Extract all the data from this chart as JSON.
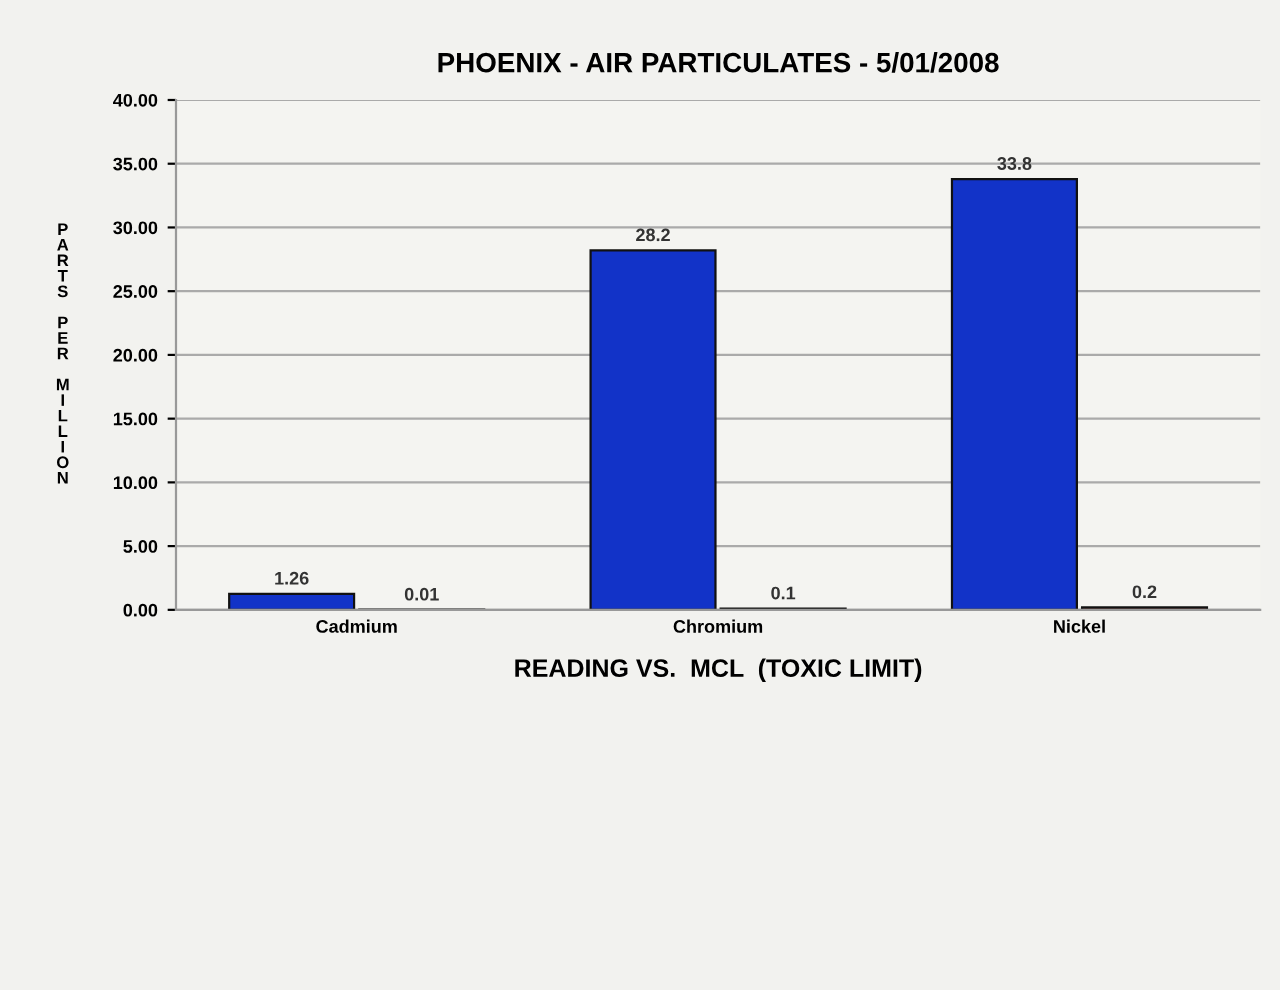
{
  "chart_data": {
    "type": "bar",
    "title": "PHOENIX - AIR PARTICULATES - 5/01/2008",
    "xlabel": "READING VS.  MCL  (TOXIC LIMIT)",
    "ylabel": "PARTS PER MILLION",
    "categories": [
      "Cadmium",
      "Chromium",
      "Nickel"
    ],
    "series": [
      {
        "color": "#1233c8",
        "values": [
          1.26,
          28.2,
          33.8
        ]
      },
      {
        "color": "#7a2a22",
        "values": [
          0.01,
          0.1,
          0.2
        ]
      }
    ],
    "ylim": [
      0,
      40
    ],
    "yticks": [
      {
        "value": 0,
        "label": "0.00"
      },
      {
        "value": 5,
        "label": "5.00"
      },
      {
        "value": 10,
        "label": "10.00"
      },
      {
        "value": 15,
        "label": "15.00"
      },
      {
        "value": 20,
        "label": "20.00"
      },
      {
        "value": 25,
        "label": "25.00"
      },
      {
        "value": 30,
        "label": "30.00"
      },
      {
        "value": 35,
        "label": "35.00"
      },
      {
        "value": 40,
        "label": "40.00"
      }
    ],
    "grid": "y",
    "data_labels": true
  }
}
